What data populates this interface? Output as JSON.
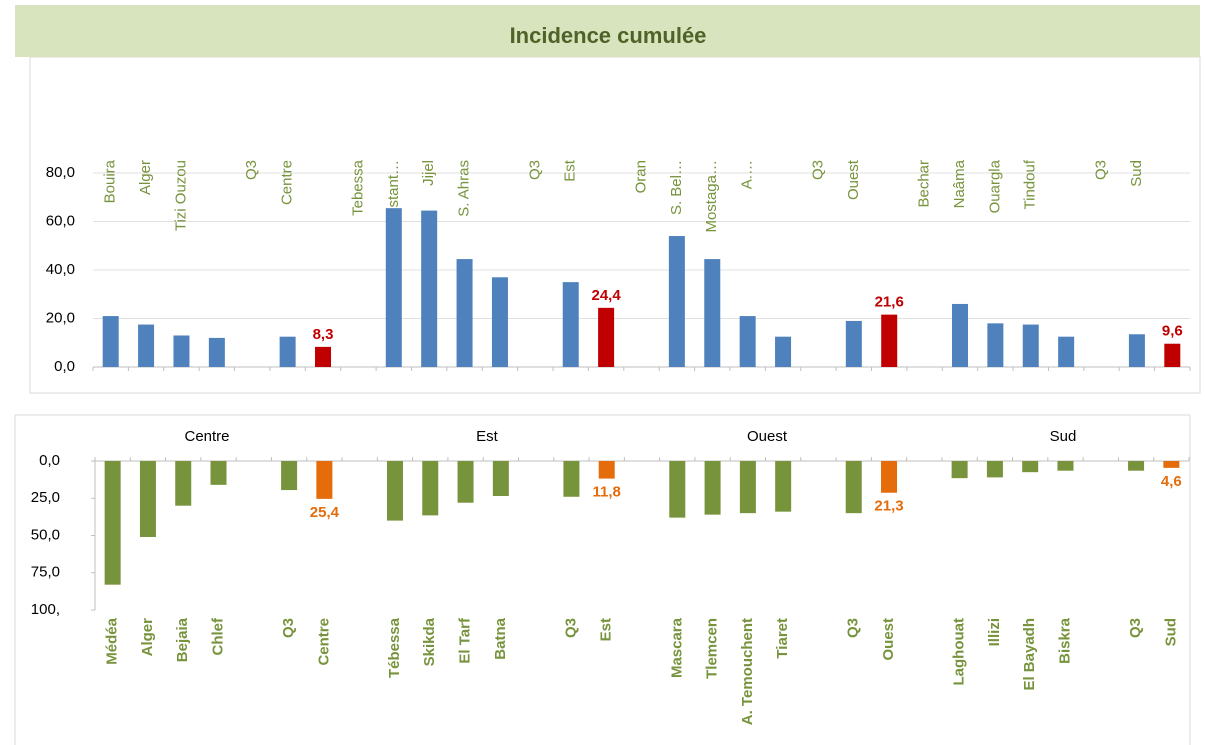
{
  "chart_data": [
    {
      "type": "bar",
      "title": "Incidence cumulée",
      "categories": [
        "Bouira",
        "Alger",
        "Tizi Ouzou",
        null,
        "Q3",
        "Centre",
        null,
        "Tebessa",
        "Constant…",
        "Jijel",
        "S. Ahras",
        null,
        "Q3",
        "Est",
        null,
        "Oran",
        "S. Bel…",
        "Mostaga…",
        "A.…",
        null,
        "Q3",
        "Ouest",
        null,
        "Bechar",
        "Naâma",
        "Ouargla",
        "Tindouf",
        null,
        "Q3",
        "Sud",
        null
      ],
      "values": [
        21,
        17.5,
        13,
        12,
        null,
        12.5,
        8.3,
        null,
        65.5,
        64.5,
        44.5,
        37,
        null,
        35,
        24.4,
        null,
        54,
        44.5,
        21,
        12.5,
        null,
        19,
        21.6,
        null,
        26,
        18,
        17.5,
        12.5,
        null,
        13.5,
        9.6
      ],
      "value_labels": [
        null,
        null,
        null,
        null,
        null,
        null,
        "8,3",
        null,
        null,
        null,
        null,
        null,
        null,
        null,
        "24,4",
        null,
        null,
        null,
        null,
        null,
        null,
        null,
        "21,6",
        null,
        null,
        null,
        null,
        null,
        null,
        null,
        "9,6"
      ],
      "colors": [
        "#4f81bd",
        "#4f81bd",
        "#4f81bd",
        "#4f81bd",
        null,
        "#4f81bd",
        "#c00000",
        null,
        "#4f81bd",
        "#4f81bd",
        "#4f81bd",
        "#4f81bd",
        null,
        "#4f81bd",
        "#c00000",
        null,
        "#4f81bd",
        "#4f81bd",
        "#4f81bd",
        "#4f81bd",
        null,
        "#4f81bd",
        "#c00000",
        null,
        "#4f81bd",
        "#4f81bd",
        "#4f81bd",
        "#4f81bd",
        null,
        "#4f81bd",
        "#c00000"
      ],
      "ylim": [
        0,
        80
      ],
      "yticks": [
        {
          "value": 0,
          "label": "0,0"
        },
        {
          "value": 20,
          "label": "20,0"
        },
        {
          "value": 40,
          "label": "40,0"
        },
        {
          "value": 60,
          "label": "60,0"
        },
        {
          "value": 80,
          "label": "80,0"
        }
      ],
      "grid": true
    },
    {
      "type": "bar",
      "groups": [
        "Centre",
        "Est",
        "Ouest",
        "Sud"
      ],
      "categories": [
        "Médéa",
        "Alger",
        "Bejaia",
        "Chlef",
        null,
        "Q3",
        "Centre",
        null,
        "Tébessa",
        "Skikda",
        "El Tarf",
        "Batna",
        null,
        "Q3",
        "Est",
        null,
        "Mascara",
        "Tlemcen",
        "A. Temouchent",
        "Tiaret",
        null,
        "Q3",
        "Ouest",
        null,
        "Laghouat",
        "Illizi",
        "El Bayadh",
        "Biskra",
        null,
        "Q3",
        "Sud"
      ],
      "values": [
        83,
        51,
        30,
        16,
        null,
        19.5,
        25.4,
        null,
        40,
        36.5,
        28,
        23.5,
        null,
        24,
        11.8,
        null,
        38,
        36,
        35,
        34,
        null,
        35,
        21.3,
        null,
        11.5,
        11,
        7.5,
        6.5,
        null,
        6.5,
        4.6
      ],
      "value_labels": [
        null,
        null,
        null,
        null,
        null,
        null,
        "25,4",
        null,
        null,
        null,
        null,
        null,
        null,
        null,
        "11,8",
        null,
        null,
        null,
        null,
        null,
        null,
        null,
        "21,3",
        null,
        null,
        null,
        null,
        null,
        null,
        null,
        "4,6"
      ],
      "colors": [
        "#77933c",
        "#77933c",
        "#77933c",
        "#77933c",
        null,
        "#77933c",
        "#e46c0a",
        null,
        "#77933c",
        "#77933c",
        "#77933c",
        "#77933c",
        null,
        "#77933c",
        "#e46c0a",
        null,
        "#77933c",
        "#77933c",
        "#77933c",
        "#77933c",
        null,
        "#77933c",
        "#e46c0a",
        null,
        "#77933c",
        "#77933c",
        "#77933c",
        "#77933c",
        null,
        "#77933c",
        "#e46c0a"
      ],
      "ylim": [
        0,
        100
      ],
      "y_inverted": true,
      "yticks": [
        {
          "value": 0,
          "label": "0,0"
        },
        {
          "value": 25,
          "label": "25,0"
        },
        {
          "value": 50,
          "label": "50,0"
        },
        {
          "value": 75,
          "label": "75,0"
        },
        {
          "value": 100,
          "label": "100,"
        }
      ],
      "grid": false
    }
  ]
}
